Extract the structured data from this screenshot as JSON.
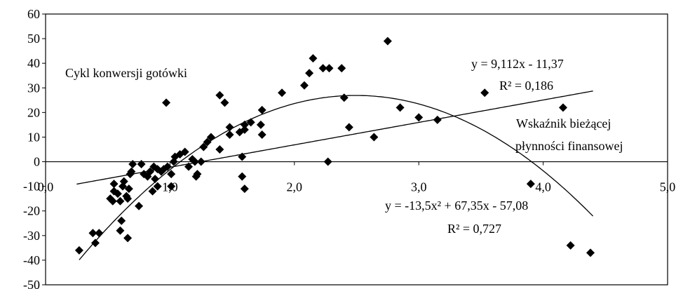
{
  "chart_data": {
    "type": "scatter",
    "title": "",
    "xlabel": "",
    "ylabel": "",
    "xlim": [
      0,
      5
    ],
    "ylim": [
      -50,
      60
    ],
    "x_ticks": [
      0,
      1,
      2,
      3,
      4,
      5
    ],
    "x_tick_labels": [
      "0,0",
      "1,0",
      "2,0",
      "3,0",
      "4,0",
      "5,0"
    ],
    "y_ticks": [
      -50,
      -40,
      -30,
      -20,
      -10,
      0,
      10,
      20,
      30,
      40,
      50,
      60
    ],
    "y_tick_labels": [
      "-50",
      "-40",
      "-30",
      "-20",
      "-10",
      "0",
      "10",
      "20",
      "30",
      "40",
      "50",
      "60"
    ],
    "grid": false,
    "marker": "diamond",
    "annotations": {
      "y_label": "Cykl konwersji gotówki",
      "x_label_line1": "Wskaźnik bieżącej",
      "x_label_line2": "płynności finansowej",
      "linear_eq": "y = 9,112x - 11,37",
      "linear_r2": "R² = 0,186",
      "quad_eq": "y = -13,5x² + 67,35x - 57,08",
      "quad_r2": "R² = 0,727"
    },
    "trendlines": [
      {
        "kind": "linear",
        "coefficients": [
          9.112,
          -11.37
        ],
        "x_range": [
          0.25,
          4.4
        ]
      },
      {
        "kind": "polynomial",
        "coefficients": [
          -13.5,
          67.35,
          -57.08
        ],
        "x_range": [
          0.27,
          4.4
        ]
      }
    ],
    "points": [
      [
        0.27,
        -36
      ],
      [
        0.38,
        -29
      ],
      [
        0.4,
        -33
      ],
      [
        0.43,
        -29
      ],
      [
        0.52,
        -15
      ],
      [
        0.54,
        -16
      ],
      [
        0.55,
        -9
      ],
      [
        0.55,
        -12
      ],
      [
        0.58,
        -13
      ],
      [
        0.6,
        -16
      ],
      [
        0.61,
        -24
      ],
      [
        0.6,
        -28
      ],
      [
        0.62,
        -10
      ],
      [
        0.63,
        -8
      ],
      [
        0.65,
        -14
      ],
      [
        0.66,
        -31
      ],
      [
        0.66,
        -15
      ],
      [
        0.67,
        -11
      ],
      [
        0.68,
        -5
      ],
      [
        0.69,
        -4
      ],
      [
        0.7,
        -1
      ],
      [
        0.75,
        -18
      ],
      [
        0.77,
        -1
      ],
      [
        0.79,
        -5
      ],
      [
        0.82,
        -6
      ],
      [
        0.84,
        -4
      ],
      [
        0.86,
        -12
      ],
      [
        0.87,
        -2
      ],
      [
        0.88,
        -7
      ],
      [
        0.9,
        -10
      ],
      [
        0.9,
        -3
      ],
      [
        0.93,
        -4
      ],
      [
        0.95,
        -3
      ],
      [
        0.98,
        -2
      ],
      [
        1.01,
        -5
      ],
      [
        1.01,
        -10
      ],
      [
        1.03,
        0
      ],
      [
        1.04,
        2
      ],
      [
        1.08,
        3
      ],
      [
        1.12,
        4
      ],
      [
        1.15,
        -2
      ],
      [
        1.18,
        1
      ],
      [
        1.2,
        0
      ],
      [
        1.21,
        -6
      ],
      [
        1.22,
        -5
      ],
      [
        1.25,
        0
      ],
      [
        1.27,
        6
      ],
      [
        1.3,
        8
      ],
      [
        1.33,
        10
      ],
      [
        0.97,
        24
      ],
      [
        1.4,
        27
      ],
      [
        1.44,
        24
      ],
      [
        1.4,
        5
      ],
      [
        1.48,
        14
      ],
      [
        1.48,
        11
      ],
      [
        1.56,
        12
      ],
      [
        1.6,
        15
      ],
      [
        1.6,
        13
      ],
      [
        1.65,
        16
      ],
      [
        1.58,
        2
      ],
      [
        1.58,
        -6
      ],
      [
        1.6,
        -11
      ],
      [
        1.74,
        21
      ],
      [
        1.73,
        15
      ],
      [
        1.74,
        11
      ],
      [
        1.9,
        28
      ],
      [
        2.08,
        31
      ],
      [
        2.12,
        36
      ],
      [
        2.15,
        42
      ],
      [
        2.23,
        38
      ],
      [
        2.28,
        38
      ],
      [
        2.38,
        38
      ],
      [
        2.4,
        26
      ],
      [
        2.44,
        14
      ],
      [
        2.27,
        0
      ],
      [
        2.64,
        10
      ],
      [
        2.75,
        49
      ],
      [
        2.85,
        22
      ],
      [
        3.0,
        18
      ],
      [
        3.15,
        17
      ],
      [
        3.53,
        28
      ],
      [
        3.9,
        -9
      ],
      [
        4.16,
        22
      ],
      [
        4.22,
        -34
      ],
      [
        4.38,
        -37
      ]
    ]
  }
}
